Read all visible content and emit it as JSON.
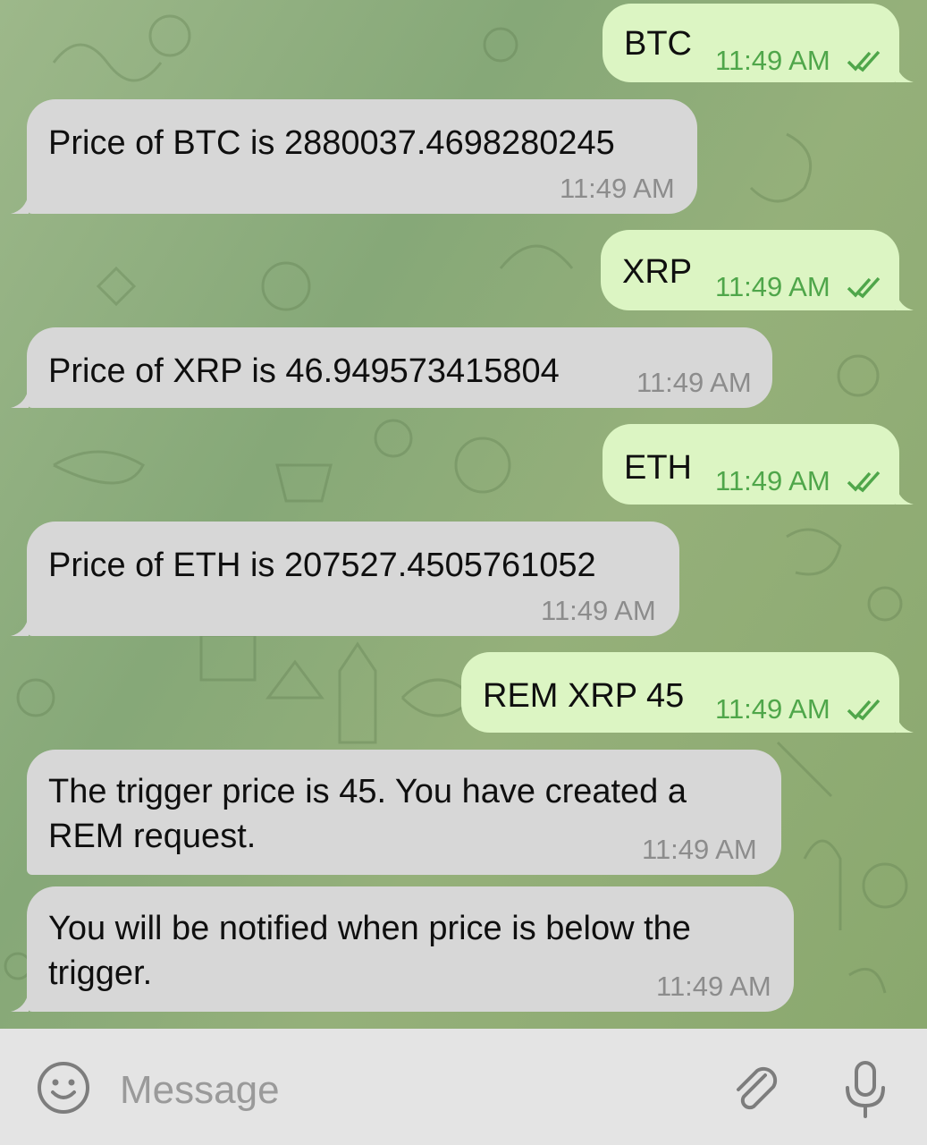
{
  "messages": [
    {
      "direction": "out",
      "text": "BTC",
      "time": "11:49 AM"
    },
    {
      "direction": "in",
      "text": "Price of BTC is 2880037.4698280245",
      "time": "11:49 AM"
    },
    {
      "direction": "out",
      "text": "XRP",
      "time": "11:49 AM"
    },
    {
      "direction": "in",
      "text": "Price of XRP is 46.949573415804",
      "time": "11:49 AM"
    },
    {
      "direction": "out",
      "text": "ETH",
      "time": "11:49 AM"
    },
    {
      "direction": "in",
      "text": "Price of ETH is 207527.4505761052",
      "time": "11:49 AM"
    },
    {
      "direction": "out",
      "text": "REM XRP 45",
      "time": "11:49 AM"
    },
    {
      "direction": "in",
      "text": "The trigger price is 45. You have created a\nREM request.",
      "time": "11:49 AM"
    },
    {
      "direction": "in",
      "text": "You will be notified when price is below the\ntrigger.",
      "time": "11:49 AM"
    }
  ],
  "input": {
    "placeholder": "Message",
    "emoji_icon": "smiley-icon",
    "attach_icon": "paperclip-icon",
    "mic_icon": "microphone-icon"
  },
  "colors": {
    "outgoing_bubble": "#dcf5c3",
    "incoming_bubble": "#d7d7d7",
    "outgoing_time": "#4fa64a",
    "incoming_time": "#8c8c8c",
    "chat_background": "#8fad7c",
    "input_bar": "#e4e4e4"
  }
}
